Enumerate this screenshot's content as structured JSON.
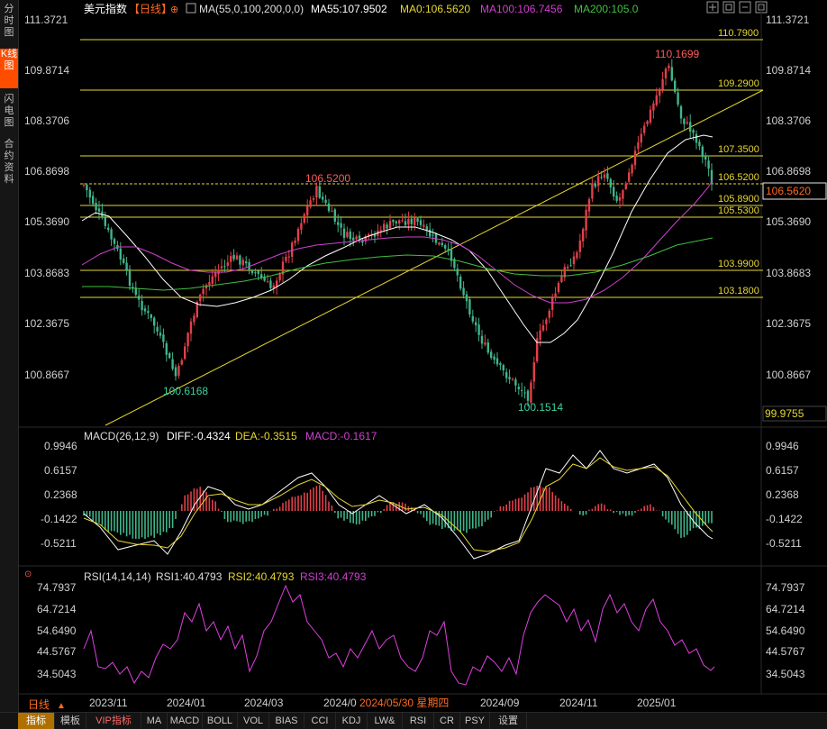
{
  "sidebar": {
    "tabs": [
      {
        "label": "分时图",
        "active": false
      },
      {
        "label": "K线图",
        "active": true
      },
      {
        "label": "闪电图",
        "active": false
      },
      {
        "label": "合约资料",
        "active": false
      }
    ]
  },
  "header": {
    "symbol": "美元指数",
    "period": "【日线】",
    "ma_params": "MA(55,0,100,200,0,0)",
    "ma55": "MA55:107.9502",
    "ma0": "MA0:106.5620",
    "ma100": "MA100:106.7456",
    "ma200": "MA200:105.0",
    "icons": [
      "crosshair-icon",
      "fit-icon",
      "minimize-icon",
      "maximize-icon",
      "close-icon"
    ]
  },
  "price_axis": {
    "labels": [
      "111.3721",
      "109.8714",
      "108.3706",
      "106.8698",
      "105.3690",
      "103.8683",
      "102.3675",
      "100.8667"
    ],
    "current_price": "106.5620",
    "bottom_value": "99.9755"
  },
  "horizontal_lines": [
    "110.7900",
    "109.2900",
    "107.3500",
    "106.5200",
    "105.8900",
    "105.5300",
    "103.9900",
    "103.1800"
  ],
  "annotations": {
    "high": "110.1699",
    "low1": "100.6168",
    "low2": "100.1514",
    "mid_high": "106.5200"
  },
  "macd": {
    "title": "MACD(26,12,9)",
    "diff": "DIFF:-0.4324",
    "dea": "DEA:-0.3515",
    "macd": "MACD:-0.1617",
    "axis": [
      "0.9946",
      "0.6157",
      "0.2368",
      "-0.1422",
      "-0.5211"
    ]
  },
  "rsi": {
    "title": "RSI(14,14,14)",
    "rsi1": "RSI1:40.4793",
    "rsi2": "RSI2:40.4793",
    "rsi3": "RSI3:40.4793",
    "axis": [
      "74.7937",
      "64.7214",
      "54.6490",
      "44.5767",
      "34.5043"
    ]
  },
  "time_axis": {
    "period": "日线",
    "labels": [
      "2023/11",
      "2024/01",
      "2024/03",
      "2024/0",
      "2024/09",
      "2024/11",
      "2025/01"
    ],
    "cursor_date": "2024/05/30 星期四"
  },
  "bottom_tabs": [
    "指标",
    "模板",
    "VIP指标",
    "MA",
    "MACD",
    "BOLL",
    "VOL",
    "BIAS",
    "CCI",
    "KDJ",
    "LW&",
    "RSI",
    "CR",
    "PSY",
    "设置"
  ],
  "colors": {
    "up": "#e0404a",
    "down": "#3fb58a",
    "ma55": "#ffffff",
    "ma100": "#d040d0",
    "ma200": "#40c040",
    "hline": "#e8d830",
    "rsi": "#e040e0"
  }
}
